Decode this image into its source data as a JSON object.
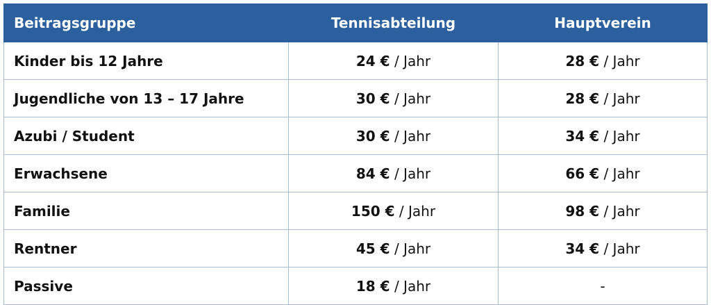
{
  "table": {
    "header": [
      "Beitragsgruppe",
      "Tennisabteilung",
      "Hauptverein"
    ],
    "rows": [
      [
        "Kinder bis 12 Jahre",
        {
          "amount": "24 €",
          "unit": "/ Jahr"
        },
        {
          "amount": "28 €",
          "unit": "/ Jahr"
        }
      ],
      [
        "Jugendliche von 13 – 17 Jahre",
        {
          "amount": "30 €",
          "unit": "/ Jahr"
        },
        {
          "amount": "28 €",
          "unit": "/ Jahr"
        }
      ],
      [
        "Azubi / Student",
        {
          "amount": "30 €",
          "unit": "/ Jahr"
        },
        {
          "amount": "34 €",
          "unit": "/ Jahr"
        }
      ],
      [
        "Erwachsene",
        {
          "amount": "84 €",
          "unit": "/ Jahr"
        },
        {
          "amount": "66 €",
          "unit": "/ Jahr"
        }
      ],
      [
        "Familie",
        {
          "amount": "150 €",
          "unit": "/ Jahr"
        },
        {
          "amount": "98 €",
          "unit": "/ Jahr"
        }
      ],
      [
        "Rentner",
        {
          "amount": "45 €",
          "unit": "/ Jahr"
        },
        {
          "amount": "34 €",
          "unit": "/ Jahr"
        }
      ],
      [
        "Passive",
        {
          "amount": "18 €",
          "unit": "/ Jahr"
        },
        "-"
      ]
    ]
  }
}
